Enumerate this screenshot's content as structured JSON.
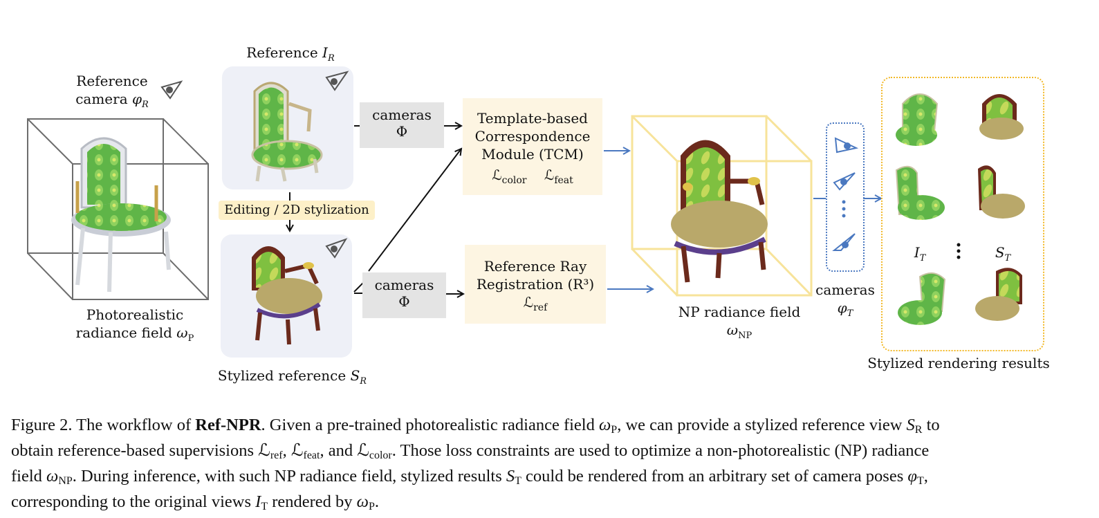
{
  "labels": {
    "ref_camera_line1": "Reference",
    "ref_camera_line2": "camera",
    "ref_camera_sym": "φ",
    "ref_camera_sub": "R",
    "photoreal_line1": "Photorealistic",
    "photoreal_line2": "radiance field",
    "photoreal_sym": "ω",
    "photoreal_sub": "P",
    "reference_title": "Reference",
    "reference_sym": "I",
    "reference_sub": "R",
    "editing_tag": "Editing / 2D stylization",
    "stylized_ref": "Stylized reference",
    "stylized_sym": "S",
    "stylized_sub": "R",
    "cameras_top_line1": "cameras",
    "cameras_top_line2": "Φ",
    "cameras_bot_line1": "cameras",
    "cameras_bot_line2": "Φ",
    "tcm_line1": "Template-based",
    "tcm_line2": "Correspondence",
    "tcm_line3": "Module (TCM)",
    "tcm_loss1_sym": "ℒ",
    "tcm_loss1_sub": "color",
    "tcm_loss2_sym": "ℒ",
    "tcm_loss2_sub": "feat",
    "r3_line1": "Reference Ray",
    "r3_line2": "Registration (R³)",
    "r3_loss_sym": "ℒ",
    "r3_loss_sub": "ref",
    "np_field": "NP radiance field",
    "np_sym": "ω",
    "np_sub": "NP",
    "cameras_target": "cameras",
    "cameras_target_sym": "φ",
    "cameras_target_sub": "T",
    "it_sym": "I",
    "it_sub": "T",
    "st_sym": "S",
    "st_sub": "T",
    "results_label": "Stylized rendering results"
  },
  "caption": {
    "lead": "Figure 2. The workflow of ",
    "method": "Ref-NPR",
    "l1_a": ". Given a pre-trained photorealistic radiance field ",
    "l1_b": ", we can provide a stylized reference view ",
    "l1_c": " to",
    "l2_a": "obtain reference-based supervisions ",
    "l2_b": ", and ",
    "l2_c": ". Those loss constraints are used to optimize a non-photorealistic (NP) radiance",
    "l3_a": "field ",
    "l3_b": ". During inference, with such NP radiance field, stylized results ",
    "l3_c": " could be rendered from an arbitrary set of camera poses ",
    "l3_d": ",",
    "l4_a": "corresponding to the original views ",
    "l4_b": " rendered by ",
    "l4_c": "."
  },
  "colors": {
    "accent_blue": "#4a78c0",
    "panel_bg": "#eef0f7",
    "cream": "#fdf5e2",
    "tag_yellow": "#fdf0c8",
    "gold_dotted": "#f2b825",
    "np_cube": "#f7e39a",
    "chair_green": "#5fb548",
    "chair_brown": "#6b2a1c"
  }
}
